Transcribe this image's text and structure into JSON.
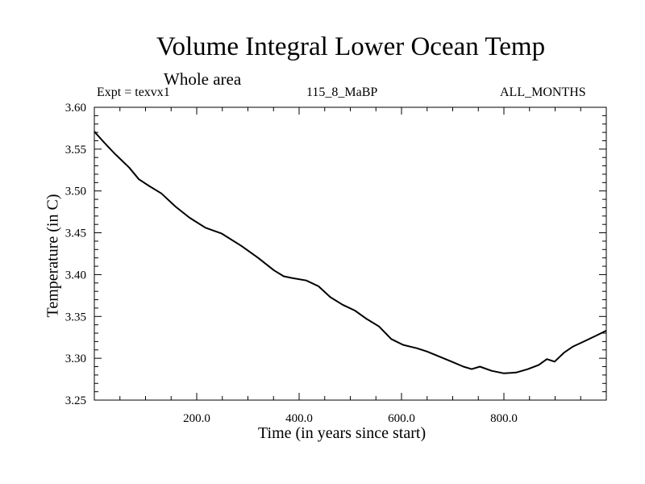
{
  "chart_data": {
    "type": "line",
    "title": "Volume Integral Lower Ocean Temp",
    "subtitle": "Whole area",
    "annotations": {
      "expt": "Expt = texvx1",
      "period": "115_8_MaBP",
      "months": "ALL_MONTHS"
    },
    "xlabel": "Time (in years since start)",
    "ylabel": "Temperature (in C)",
    "xlim": [
      0,
      1000
    ],
    "ylim": [
      3.25,
      3.6
    ],
    "x_ticks": [
      200,
      400,
      600,
      800
    ],
    "x_tick_labels": [
      "200.0",
      "400.0",
      "600.0",
      "800.0"
    ],
    "x_minor_step": 50,
    "y_ticks": [
      3.25,
      3.3,
      3.35,
      3.4,
      3.45,
      3.5,
      3.55,
      3.6
    ],
    "y_tick_labels": [
      "3.25",
      "3.30",
      "3.35",
      "3.40",
      "3.45",
      "3.50",
      "3.55",
      "3.60"
    ],
    "y_minor_step": 0.01,
    "grid": false,
    "legend": "none",
    "series": [
      {
        "name": "texvx1",
        "color": "#000000",
        "x": [
          0,
          16,
          39,
          68,
          87,
          107,
          131,
          159,
          186,
          217,
          249,
          288,
          320,
          351,
          370,
          386,
          414,
          438,
          461,
          485,
          509,
          532,
          556,
          580,
          603,
          630,
          650,
          674,
          698,
          721,
          737,
          753,
          776,
          800,
          824,
          847,
          868,
          884,
          899,
          918,
          935,
          956,
          980,
          1000
        ],
        "y": [
          3.571,
          3.56,
          3.545,
          3.528,
          3.514,
          3.506,
          3.497,
          3.481,
          3.468,
          3.456,
          3.449,
          3.434,
          3.42,
          3.405,
          3.398,
          3.396,
          3.393,
          3.386,
          3.373,
          3.364,
          3.357,
          3.347,
          3.338,
          3.323,
          3.316,
          3.312,
          3.308,
          3.302,
          3.296,
          3.29,
          3.287,
          3.29,
          3.285,
          3.282,
          3.283,
          3.287,
          3.292,
          3.299,
          3.296,
          3.307,
          3.314,
          3.32,
          3.327,
          3.333
        ]
      }
    ]
  }
}
